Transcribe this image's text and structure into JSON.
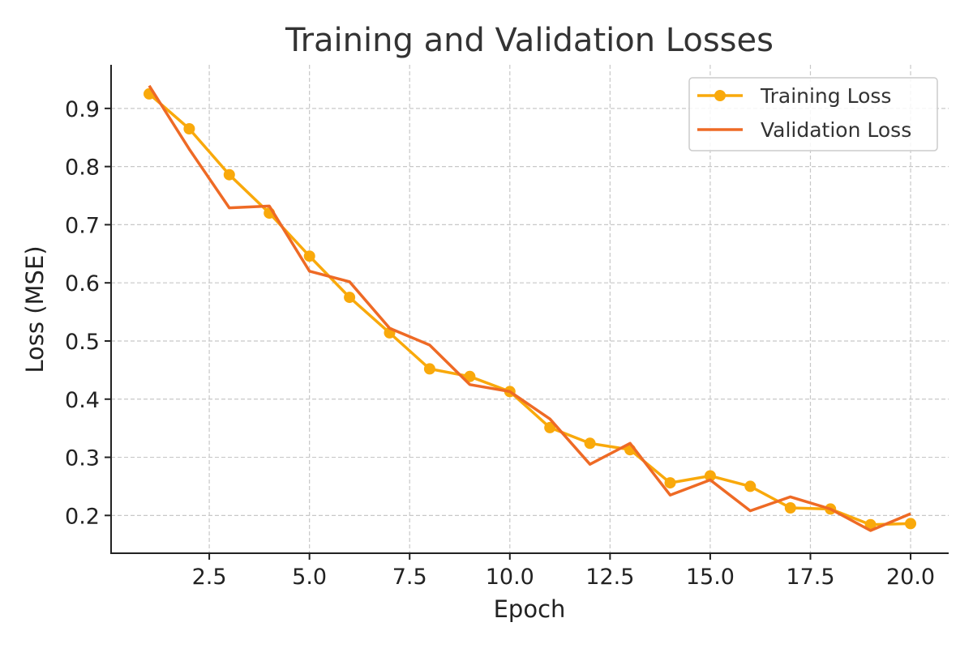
{
  "chart_data": {
    "type": "line",
    "title": "Training and Validation Losses",
    "xlabel": "Epoch",
    "ylabel": "Loss (MSE)",
    "xlim": [
      0.05,
      20.95
    ],
    "ylim": [
      0.135,
      0.975
    ],
    "xticks": [
      2.5,
      5.0,
      7.5,
      10.0,
      12.5,
      15.0,
      17.5,
      20.0
    ],
    "xtick_labels": [
      "2.5",
      "5.0",
      "7.5",
      "10.0",
      "12.5",
      "15.0",
      "17.5",
      "20.0"
    ],
    "yticks": [
      0.2,
      0.3,
      0.4,
      0.5,
      0.6,
      0.7,
      0.8,
      0.9
    ],
    "ytick_labels": [
      "0.2",
      "0.3",
      "0.4",
      "0.5",
      "0.6",
      "0.7",
      "0.8",
      "0.9"
    ],
    "grid": true,
    "legend_position": "top-right",
    "x": [
      1,
      2,
      3,
      4,
      5,
      6,
      7,
      8,
      9,
      10,
      11,
      12,
      13,
      14,
      15,
      16,
      17,
      18,
      19,
      20
    ],
    "series": [
      {
        "name": "Training Loss",
        "color": "#F9A90B",
        "marker": "circle",
        "values": [
          0.925,
          0.865,
          0.786,
          0.72,
          0.646,
          0.575,
          0.514,
          0.452,
          0.439,
          0.413,
          0.351,
          0.324,
          0.313,
          0.256,
          0.268,
          0.25,
          0.213,
          0.211,
          0.184,
          0.186
        ]
      },
      {
        "name": "Validation Loss",
        "color": "#EE6A25",
        "marker": "none",
        "values": [
          0.939,
          0.83,
          0.729,
          0.732,
          0.62,
          0.602,
          0.522,
          0.493,
          0.425,
          0.413,
          0.366,
          0.288,
          0.324,
          0.235,
          0.261,
          0.208,
          0.232,
          0.211,
          0.174,
          0.203
        ]
      }
    ]
  }
}
